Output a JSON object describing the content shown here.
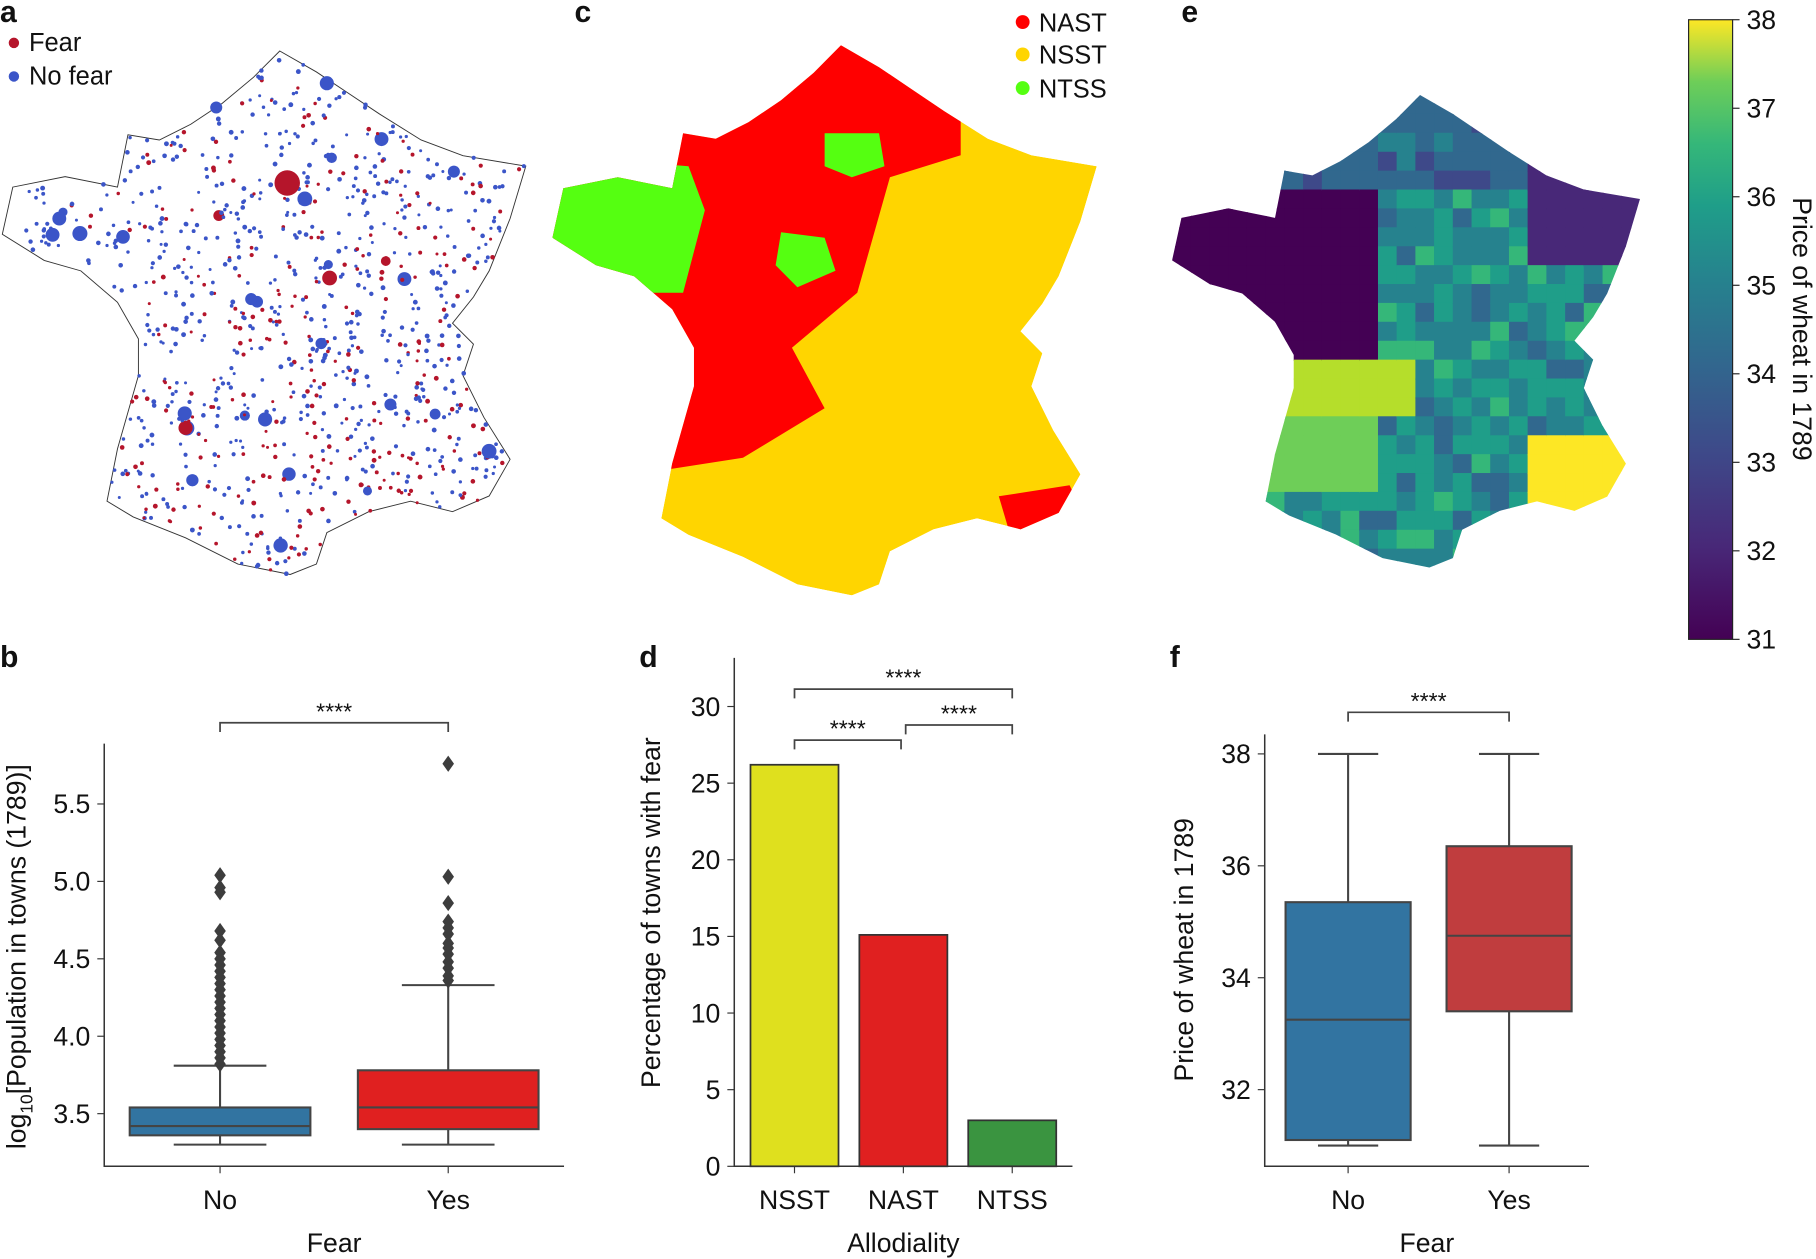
{
  "panels": {
    "a": "a",
    "b": "b",
    "c": "c",
    "d": "d",
    "e": "e",
    "f": "f"
  },
  "map_a": {
    "legend": [
      {
        "label": "Fear",
        "color": "#b5152b"
      },
      {
        "label": "No fear",
        "color": "#3b55c8"
      }
    ]
  },
  "map_c": {
    "legend": [
      {
        "label": "NAST",
        "color": "#ff0000"
      },
      {
        "label": "NSST",
        "color": "#ffd500"
      },
      {
        "label": "NTSS",
        "color": "#55ff11"
      }
    ]
  },
  "map_e": {
    "colorbar": {
      "label": "Price of wheat in 1789",
      "min": 31,
      "max": 38,
      "ticks": [
        "38",
        "37",
        "36",
        "35",
        "34",
        "33",
        "32",
        "31"
      ]
    }
  },
  "chart_data": [
    {
      "id": "b",
      "type": "box",
      "xlabel": "Fear",
      "ylabel_main": "log",
      "ylabel_sub": "10",
      "ylabel_rest": "[Population in towns (1789)]",
      "categories": [
        "No",
        "Yes"
      ],
      "colors": [
        "#3274a1",
        "#e02020"
      ],
      "yticks": [
        "3.5",
        "4.0",
        "4.5",
        "5.0",
        "5.5"
      ],
      "ylim": [
        3.16,
        5.89
      ],
      "boxes": [
        {
          "whislo": 3.3,
          "q1": 3.36,
          "med": 3.42,
          "q3": 3.54,
          "whishi": 3.81,
          "fliers": [
            3.82,
            3.86,
            3.9,
            3.94,
            3.98,
            4.02,
            4.06,
            4.1,
            4.14,
            4.18,
            4.22,
            4.26,
            4.3,
            4.34,
            4.38,
            4.42,
            4.46,
            4.5,
            4.54,
            4.62,
            4.68,
            4.93,
            4.96,
            5.04
          ]
        },
        {
          "whislo": 3.3,
          "q1": 3.4,
          "med": 3.54,
          "q3": 3.78,
          "whishi": 4.33,
          "fliers": [
            4.36,
            4.39,
            4.44,
            4.48,
            4.53,
            4.57,
            4.6,
            4.66,
            4.7,
            4.74,
            4.86,
            5.03,
            5.76
          ]
        }
      ],
      "significance": [
        {
          "pair": [
            "No",
            "Yes"
          ],
          "label": "****"
        }
      ]
    },
    {
      "id": "d",
      "type": "bar",
      "xlabel": "Allodiality",
      "ylabel": "Percentage of towns with fear",
      "categories": [
        "NSST",
        "NAST",
        "NTSS"
      ],
      "values": [
        26.2,
        15.1,
        3.0
      ],
      "colors": [
        "#dfe01e",
        "#e02020",
        "#3a9440"
      ],
      "yticks": [
        "0",
        "5",
        "10",
        "15",
        "20",
        "25",
        "30"
      ],
      "ylim": [
        0,
        30
      ],
      "significance": [
        {
          "pair": [
            "NSST",
            "NAST"
          ],
          "label": "****"
        },
        {
          "pair": [
            "NAST",
            "NTSS"
          ],
          "label": "****"
        },
        {
          "pair": [
            "NSST",
            "NTSS"
          ],
          "label": "****"
        }
      ]
    },
    {
      "id": "f",
      "type": "box",
      "xlabel": "Fear",
      "ylabel": "Price of wheat in 1789",
      "categories": [
        "No",
        "Yes"
      ],
      "colors": [
        "#3274a1",
        "#c03d3e"
      ],
      "yticks": [
        "32",
        "34",
        "36",
        "38"
      ],
      "ylim": [
        30.63,
        38.35
      ],
      "boxes": [
        {
          "whislo": 31.0,
          "q1": 31.1,
          "med": 33.25,
          "q3": 35.35,
          "whishi": 38.0,
          "fliers": []
        },
        {
          "whislo": 31.0,
          "q1": 33.4,
          "med": 34.75,
          "q3": 36.35,
          "whishi": 38.0,
          "fliers": []
        }
      ],
      "significance": [
        {
          "pair": [
            "No",
            "Yes"
          ],
          "label": "****"
        }
      ]
    }
  ]
}
